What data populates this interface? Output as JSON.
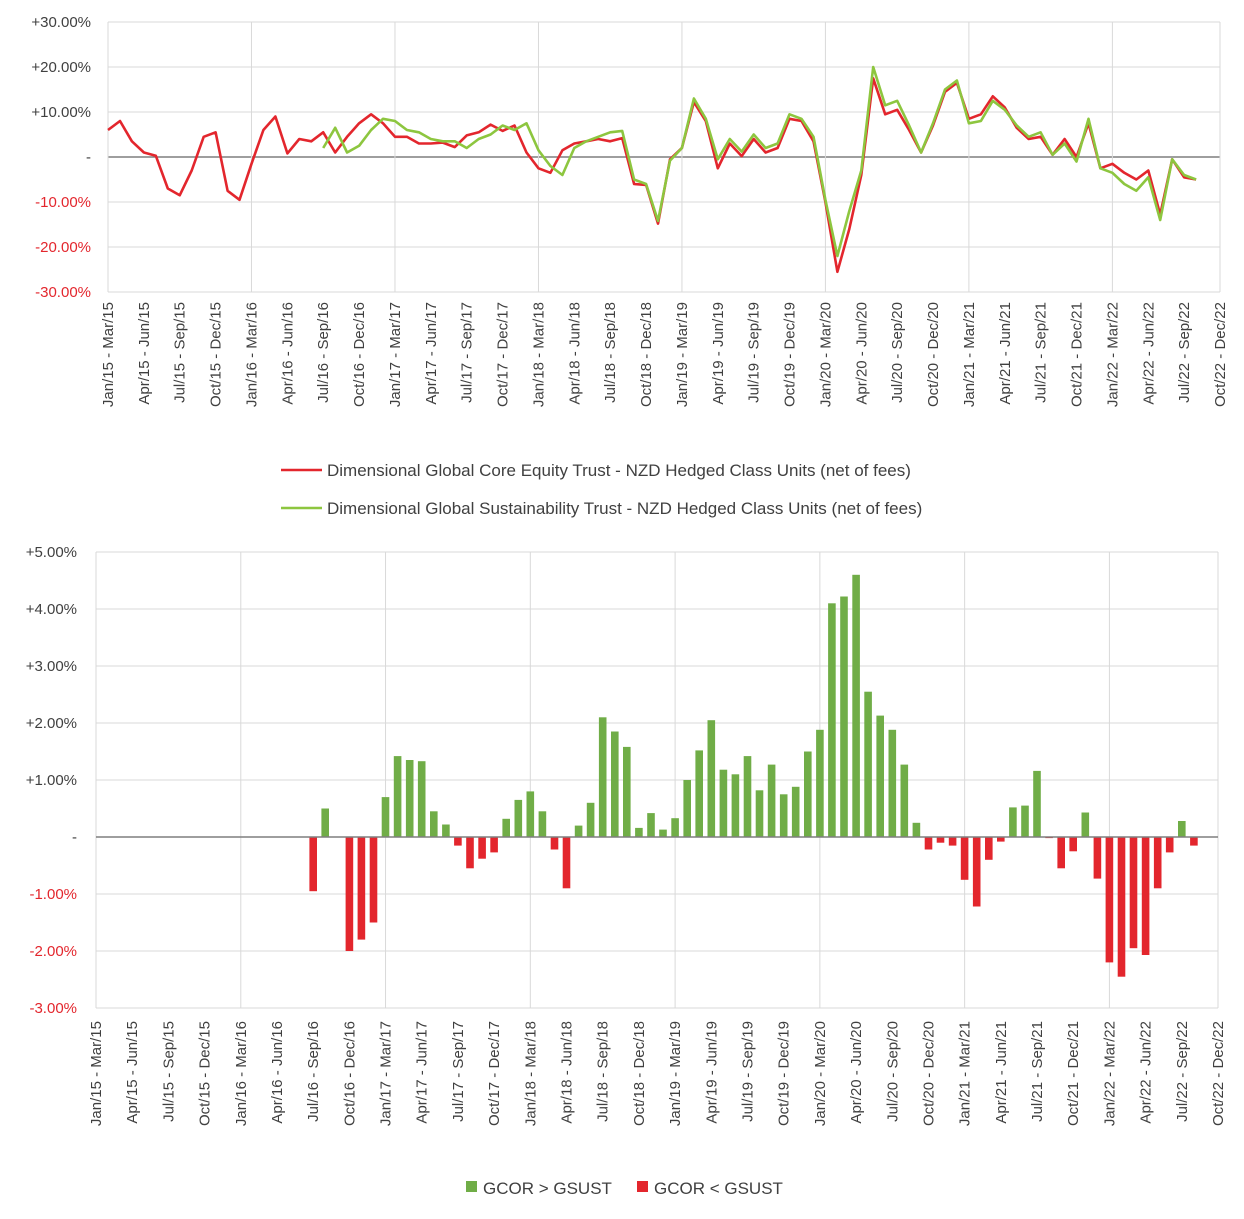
{
  "chart_data": [
    {
      "type": "line",
      "x_ticks": [
        "Jan/15 - Mar/15",
        "Apr/15 - Jun/15",
        "Jul/15 - Sep/15",
        "Oct/15 - Dec/15",
        "Jan/16 - Mar/16",
        "Apr/16 - Jun/16",
        "Jul/16 - Sep/16",
        "Oct/16 - Dec/16",
        "Jan/17 - Mar/17",
        "Apr/17 - Jun/17",
        "Jul/17 - Sep/17",
        "Oct/17 - Dec/17",
        "Jan/18 - Mar/18",
        "Apr/18 - Jun/18",
        "Jul/18 - Sep/18",
        "Oct/18 - Dec/18",
        "Jan/19 - Mar/19",
        "Apr/19 - Jun/19",
        "Jul/19 - Sep/19",
        "Oct/19 - Dec/19",
        "Jan/20 - Mar/20",
        "Apr/20 - Jun/20",
        "Jul/20 - Sep/20",
        "Oct/20 - Dec/20",
        "Jan/21 - Mar/21",
        "Apr/21 - Jun/21",
        "Jul/21 - Sep/21",
        "Oct/21 - Dec/21",
        "Jan/22 - Mar/22",
        "Apr/22 - Jun/22",
        "Jul/22 - Sep/22",
        "Oct/22 - Dec/22"
      ],
      "y_ticks": [
        "+30.00%",
        "+20.00%",
        "+10.00%",
        "-",
        "-10.00%",
        "-20.00%",
        "-30.00%"
      ],
      "ylim": [
        -30,
        30
      ],
      "grid": true,
      "legend_position": "bottom",
      "series": [
        {
          "name": "Dimensional Global Core Equity Trust - NZD Hedged Class Units (net of fees)",
          "color": "#e3262d",
          "values": [
            6,
            8,
            3.5,
            1,
            0.3,
            -7,
            -8.5,
            -3,
            4.5,
            5.5,
            -7.5,
            -9.5,
            -1.5,
            6,
            9,
            0.8,
            4,
            3.5,
            5.5,
            1,
            4.5,
            7.5,
            9.5,
            7.5,
            4.5,
            4.5,
            3,
            3,
            3.2,
            2.2,
            4.8,
            5.5,
            7.2,
            5.8,
            7,
            1,
            -2.5,
            -3.5,
            1.5,
            3,
            3.5,
            4,
            3.5,
            4.2,
            -6,
            -6.2,
            -14.8,
            -0.5,
            2,
            12.2,
            8,
            -2.5,
            3,
            0.2,
            4,
            1,
            2,
            8.5,
            8,
            3.5,
            -10,
            -25.5,
            -16,
            -4,
            17.5,
            9.5,
            10.5,
            6,
            1,
            7,
            14.5,
            16.5,
            8.5,
            9.5,
            13.5,
            11,
            6.5,
            4,
            4.5,
            0.5,
            4,
            0,
            7.5,
            -2.5,
            -1.5,
            -3.5,
            -5,
            -3,
            -12.8,
            -0.5,
            -4.5,
            -5
          ]
        },
        {
          "name": "Dimensional Global Sustainability Trust - NZD Hedged Class Units (net of fees)",
          "color": "#8dc63f",
          "values": [
            null,
            null,
            null,
            null,
            null,
            null,
            null,
            null,
            null,
            null,
            null,
            null,
            null,
            null,
            null,
            null,
            null,
            null,
            2,
            6.5,
            1,
            2.5,
            6,
            8.5,
            8,
            6,
            5.5,
            4,
            3.5,
            3.5,
            2,
            4,
            5,
            7,
            6,
            7.5,
            1.5,
            -2,
            -4,
            2,
            3.5,
            4.5,
            5.5,
            5.8,
            -5,
            -6,
            -14.2,
            -0.8,
            2,
            13,
            8.5,
            -0.5,
            4,
            1.2,
            5,
            2,
            3,
            9.5,
            8.5,
            4.5,
            -9.5,
            -22,
            -12,
            -3,
            20,
            11.5,
            12.5,
            7,
            1,
            7.5,
            15,
            17,
            7.5,
            8,
            12.5,
            10.5,
            7,
            4.5,
            5.5,
            0.5,
            3,
            -1,
            8.5,
            -2.5,
            -3.5,
            -6,
            -7.5,
            -4.5,
            -14,
            -0.5,
            -4,
            -5
          ]
        }
      ]
    },
    {
      "type": "bar",
      "x_ticks": [
        "Jan/15 - Mar/15",
        "Apr/15 - Jun/15",
        "Jul/15 - Sep/15",
        "Oct/15 - Dec/15",
        "Jan/16 - Mar/16",
        "Apr/16 - Jun/16",
        "Jul/16 - Sep/16",
        "Oct/16 - Dec/16",
        "Jan/17 - Mar/17",
        "Apr/17 - Jun/17",
        "Jul/17 - Sep/17",
        "Oct/17 - Dec/17",
        "Jan/18 - Mar/18",
        "Apr/18 - Jun/18",
        "Jul/18 - Sep/18",
        "Oct/18 - Dec/18",
        "Jan/19 - Mar/19",
        "Apr/19 - Jun/19",
        "Jul/19 - Sep/19",
        "Oct/19 - Dec/19",
        "Jan/20 - Mar/20",
        "Apr/20 - Jun/20",
        "Jul/20 - Sep/20",
        "Oct/20 - Dec/20",
        "Jan/21 - Mar/21",
        "Apr/21 - Jun/21",
        "Jul/21 - Sep/21",
        "Oct/21 - Dec/21",
        "Jan/22 - Mar/22",
        "Apr/22 - Jun/22",
        "Jul/22 - Sep/22",
        "Oct/22 - Dec/22"
      ],
      "y_ticks": [
        "+5.00%",
        "+4.00%",
        "+3.00%",
        "+2.00%",
        "+1.00%",
        "-",
        "-1.00%",
        "-2.00%",
        "-3.00%"
      ],
      "ylim": [
        -3,
        5
      ],
      "grid": true,
      "legend_position": "bottom",
      "positive_color": "#70ad47",
      "negative_color": "#e3262d",
      "legend": [
        {
          "label": "GCOR > GSUST",
          "color": "#70ad47"
        },
        {
          "label": "GCOR < GSUST",
          "color": "#e3262d"
        }
      ],
      "values": [
        null,
        null,
        null,
        null,
        null,
        null,
        null,
        null,
        null,
        null,
        null,
        null,
        null,
        null,
        null,
        null,
        null,
        null,
        -0.95,
        0.5,
        null,
        -2,
        -1.8,
        -1.5,
        0.7,
        1.42,
        1.35,
        1.33,
        0.45,
        0.22,
        -0.15,
        -0.55,
        -0.38,
        -0.27,
        0.32,
        0.65,
        0.8,
        0.45,
        -0.22,
        -0.9,
        0.2,
        0.6,
        2.1,
        1.85,
        1.58,
        0.16,
        0.42,
        0.13,
        0.33,
        1,
        1.52,
        2.05,
        1.18,
        1.1,
        1.42,
        0.82,
        1.27,
        0.75,
        0.88,
        1.5,
        1.88,
        4.1,
        4.22,
        4.6,
        2.55,
        2.13,
        1.88,
        1.27,
        0.25,
        -0.22,
        -0.1,
        -0.15,
        -0.75,
        -1.22,
        -0.4,
        -0.08,
        0.52,
        0.55,
        1.16,
        -0.02,
        -0.55,
        -0.25,
        0.43,
        -0.73,
        -2.2,
        -2.45,
        -1.95,
        -2.07,
        -0.9,
        -0.27,
        0.28,
        -0.15
      ]
    }
  ]
}
